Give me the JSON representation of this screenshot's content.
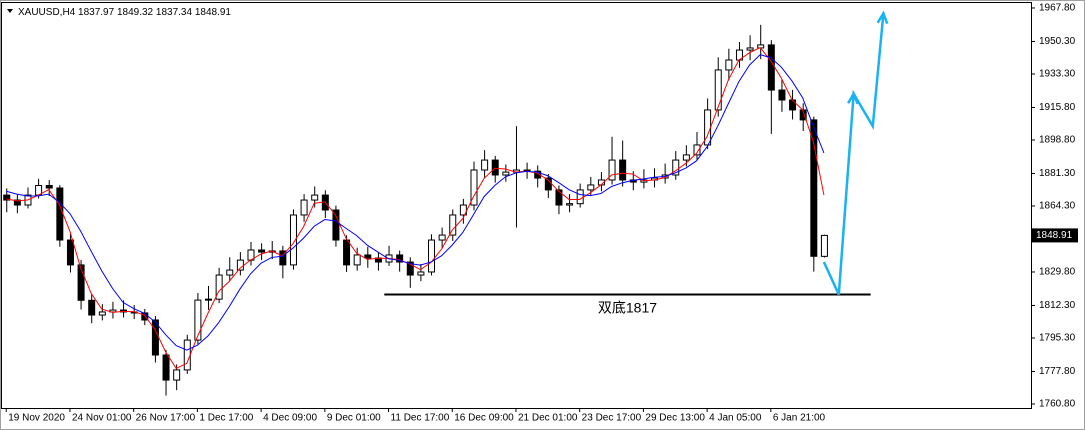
{
  "chart_data": {
    "type": "candlestick",
    "symbol": "XAUUSD,H4",
    "annotation": "双底1817",
    "up_color": "#ffffff",
    "down_color": "#000000",
    "outline_color": "#000000",
    "ylim": [
      1758.7,
      1970.4
    ],
    "xlim": [
      -0.4,
      96.5
    ],
    "yticks": [
      {
        "value": 1967.8,
        "label": "1967.80"
      },
      {
        "value": 1950.3,
        "label": "1950.30"
      },
      {
        "value": 1933.3,
        "label": "1933.30"
      },
      {
        "value": 1915.8,
        "label": "1915.80"
      },
      {
        "value": 1898.8,
        "label": "1898.80"
      },
      {
        "value": 1881.3,
        "label": "1881.30"
      },
      {
        "value": 1864.3,
        "label": "1864.30"
      },
      {
        "value": 1829.8,
        "label": "1829.80"
      },
      {
        "value": 1812.3,
        "label": "1812.30"
      },
      {
        "value": 1795.3,
        "label": "1795.30"
      },
      {
        "value": 1777.8,
        "label": "1777.80"
      },
      {
        "value": 1760.8,
        "label": "1760.80"
      }
    ],
    "xticks": [
      {
        "value": 0,
        "label": "19 Nov 2020"
      },
      {
        "value": 6,
        "label": "24 Nov 01:00"
      },
      {
        "value": 12,
        "label": "26 Nov 17:00"
      },
      {
        "value": 18,
        "label": "1 Dec 17:00"
      },
      {
        "value": 24,
        "label": "4 Dec 09:00"
      },
      {
        "value": 30,
        "label": "9 Dec 01:00"
      },
      {
        "value": 36,
        "label": "11 Dec 17:00"
      },
      {
        "value": 42,
        "label": "16 Dec 09:00"
      },
      {
        "value": 48,
        "label": "21 Dec 01:00"
      },
      {
        "value": 54,
        "label": "23 Dec 17:00"
      },
      {
        "value": 60,
        "label": "29 Dec 13:00"
      },
      {
        "value": 66,
        "label": "4 Jan 05:00"
      },
      {
        "value": 72,
        "label": "6 Jan 21:00"
      }
    ],
    "ohlc": [
      [
        1870.0,
        1873.5,
        1861.0,
        1867.4
      ],
      [
        1867.4,
        1870.2,
        1860.5,
        1864.8
      ],
      [
        1864.8,
        1874.0,
        1863.0,
        1870.0
      ],
      [
        1870.0,
        1878.5,
        1868.2,
        1875.0
      ],
      [
        1875.0,
        1877.8,
        1869.5,
        1873.7
      ],
      [
        1873.7,
        1875.2,
        1843.0,
        1846.5
      ],
      [
        1846.5,
        1849.8,
        1829.5,
        1833.5
      ],
      [
        1833.5,
        1836.0,
        1810.2,
        1815.0
      ],
      [
        1815.0,
        1818.5,
        1803.0,
        1807.3
      ],
      [
        1807.3,
        1813.0,
        1804.5,
        1808.9
      ],
      [
        1808.9,
        1814.2,
        1805.5,
        1809.9
      ],
      [
        1809.9,
        1815.0,
        1806.0,
        1808.9
      ],
      [
        1808.9,
        1812.5,
        1805.2,
        1808.4
      ],
      [
        1808.4,
        1810.5,
        1802.0,
        1804.7
      ],
      [
        1804.7,
        1806.8,
        1782.5,
        1786.4
      ],
      [
        1786.4,
        1789.0,
        1765.2,
        1773.3
      ],
      [
        1773.3,
        1781.5,
        1768.0,
        1778.6
      ],
      [
        1778.6,
        1797.0,
        1776.5,
        1794.2
      ],
      [
        1794.2,
        1818.8,
        1792.0,
        1815.1
      ],
      [
        1815.1,
        1822.5,
        1810.0,
        1815.6
      ],
      [
        1815.6,
        1832.0,
        1813.5,
        1828.2
      ],
      [
        1828.2,
        1837.5,
        1825.0,
        1830.8
      ],
      [
        1830.8,
        1840.2,
        1828.0,
        1836.0
      ],
      [
        1836.0,
        1845.5,
        1833.2,
        1841.3
      ],
      [
        1841.3,
        1844.8,
        1836.0,
        1840.2
      ],
      [
        1840.2,
        1846.0,
        1836.5,
        1840.8
      ],
      [
        1840.8,
        1843.5,
        1826.5,
        1833.5
      ],
      [
        1833.5,
        1862.5,
        1831.0,
        1859.6
      ],
      [
        1859.6,
        1870.5,
        1856.0,
        1867.4
      ],
      [
        1867.4,
        1874.5,
        1863.5,
        1870.0
      ],
      [
        1870.0,
        1872.5,
        1858.0,
        1862.2
      ],
      [
        1862.2,
        1864.5,
        1843.0,
        1846.5
      ],
      [
        1846.5,
        1849.0,
        1829.8,
        1833.5
      ],
      [
        1833.5,
        1842.5,
        1830.5,
        1838.7
      ],
      [
        1838.7,
        1843.0,
        1832.0,
        1837.1
      ],
      [
        1837.1,
        1840.0,
        1830.5,
        1835.0
      ],
      [
        1835.0,
        1843.5,
        1833.0,
        1838.7
      ],
      [
        1838.7,
        1841.0,
        1830.0,
        1835.0
      ],
      [
        1835.0,
        1837.5,
        1821.5,
        1828.2
      ],
      [
        1828.2,
        1834.0,
        1825.0,
        1829.8
      ],
      [
        1829.8,
        1849.5,
        1828.0,
        1846.5
      ],
      [
        1846.5,
        1853.0,
        1842.0,
        1849.1
      ],
      [
        1849.1,
        1862.5,
        1846.0,
        1859.6
      ],
      [
        1859.6,
        1868.0,
        1855.0,
        1864.8
      ],
      [
        1864.8,
        1887.5,
        1862.0,
        1883.1
      ],
      [
        1883.1,
        1893.5,
        1879.0,
        1888.3
      ],
      [
        1888.3,
        1890.5,
        1876.5,
        1880.5
      ],
      [
        1880.5,
        1886.0,
        1877.0,
        1882.0
      ],
      [
        1882.0,
        1906.0,
        1853.0,
        1883.1
      ],
      [
        1883.1,
        1887.0,
        1878.5,
        1882.5
      ],
      [
        1882.5,
        1885.5,
        1874.0,
        1878.9
      ],
      [
        1878.9,
        1881.0,
        1868.5,
        1872.7
      ],
      [
        1872.7,
        1875.0,
        1860.0,
        1864.8
      ],
      [
        1864.8,
        1870.5,
        1861.0,
        1865.5
      ],
      [
        1865.5,
        1876.0,
        1863.5,
        1872.7
      ],
      [
        1872.7,
        1879.5,
        1870.0,
        1875.3
      ],
      [
        1875.3,
        1882.0,
        1872.0,
        1877.9
      ],
      [
        1877.9,
        1900.5,
        1875.5,
        1888.3
      ],
      [
        1888.3,
        1898.5,
        1874.5,
        1877.9
      ],
      [
        1877.9,
        1882.5,
        1872.5,
        1876.8
      ],
      [
        1876.8,
        1883.5,
        1873.5,
        1877.9
      ],
      [
        1877.9,
        1884.0,
        1874.0,
        1878.9
      ],
      [
        1878.9,
        1886.5,
        1876.0,
        1880.5
      ],
      [
        1880.5,
        1893.0,
        1878.0,
        1888.3
      ],
      [
        1888.3,
        1896.0,
        1885.0,
        1891.0
      ],
      [
        1891.0,
        1903.0,
        1888.5,
        1896.2
      ],
      [
        1896.2,
        1920.5,
        1894.0,
        1914.5
      ],
      [
        1914.5,
        1942.0,
        1911.0,
        1935.4
      ],
      [
        1935.4,
        1946.5,
        1930.0,
        1940.6
      ],
      [
        1940.6,
        1950.0,
        1936.5,
        1945.8
      ],
      [
        1945.8,
        1953.5,
        1940.5,
        1946.9
      ],
      [
        1946.9,
        1959.0,
        1941.0,
        1948.5
      ],
      [
        1948.5,
        1951.0,
        1902.0,
        1924.9
      ],
      [
        1924.9,
        1930.5,
        1913.5,
        1919.7
      ],
      [
        1919.7,
        1925.0,
        1909.5,
        1914.5
      ],
      [
        1914.5,
        1918.0,
        1903.5,
        1909.3
      ],
      [
        1909.3,
        1911.0,
        1830.0,
        1838.0
      ],
      [
        1837.97,
        1849.32,
        1837.34,
        1848.91
      ]
    ],
    "series": [
      {
        "color": "#ff0000",
        "values": [
          1868,
          1867,
          1867.4,
          1869.9,
          1872.9,
          1865,
          1851,
          1832,
          1818.6,
          1810.4,
          1808.7,
          1809.2,
          1809.1,
          1807.3,
          1799.8,
          1788.1,
          1779.4,
          1782,
          1796,
          1808.3,
          1819.6,
          1824.9,
          1831.7,
          1836,
          1839.2,
          1840.8,
          1838.2,
          1844.6,
          1853.5,
          1865.7,
          1866.5,
          1859.6,
          1847.4,
          1839.6,
          1836.4,
          1837,
          1836.9,
          1836.2,
          1834,
          1831,
          1834.8,
          1841.8,
          1851.7,
          1857.8,
          1869.2,
          1878.7,
          1884,
          1883.6,
          1882,
          1882.5,
          1881.5,
          1878,
          1872.1,
          1867.7,
          1867.7,
          1871.2,
          1875.3,
          1880.5,
          1881.4,
          1881,
          1877.5,
          1877.9,
          1879.1,
          1882.6,
          1886.6,
          1891.8,
          1900.6,
          1915.4,
          1930.2,
          1940.6,
          1944.4,
          1947.1,
          1940.1,
          1931,
          1919.7,
          1914.5,
          1898,
          1870
        ]
      },
      {
        "color": "#0000ff",
        "values": [
          1872,
          1870.5,
          1869.5,
          1869.6,
          1870.5,
          1866.2,
          1860.3,
          1851.2,
          1840.6,
          1830.3,
          1821.3,
          1813.9,
          1810.7,
          1808.2,
          1803.8,
          1797.1,
          1791.3,
          1789,
          1791.5,
          1796.4,
          1803.3,
          1811.7,
          1820.8,
          1828.8,
          1834.4,
          1837.4,
          1838,
          1842.3,
          1847.5,
          1853.7,
          1857.2,
          1856.5,
          1852.6,
          1848.8,
          1843.8,
          1840.2,
          1836.7,
          1835.9,
          1834.2,
          1833.4,
          1835,
          1838.3,
          1843.9,
          1850.5,
          1859.8,
          1869.2,
          1875,
          1879.5,
          1881.6,
          1882.4,
          1882,
          1880.1,
          1876.6,
          1872.8,
          1870.3,
          1869.7,
          1870.8,
          1874.5,
          1876.4,
          1877.7,
          1878.4,
          1879.3,
          1879.7,
          1881.6,
          1884.1,
          1887.9,
          1895.3,
          1906,
          1917.8,
          1929.4,
          1938,
          1943.4,
          1941.8,
          1936.8,
          1929.6,
          1920.8,
          1906,
          1892
        ]
      }
    ],
    "support": {
      "value": 1818,
      "x": [
        35.6,
        81.4
      ]
    },
    "projection": {
      "color": "#1ab2f0",
      "x": [
        77,
        78.4,
        79.8,
        81.6,
        82.6
      ],
      "y": [
        1835,
        1818,
        1923,
        1906,
        1965
      ]
    }
  }
}
